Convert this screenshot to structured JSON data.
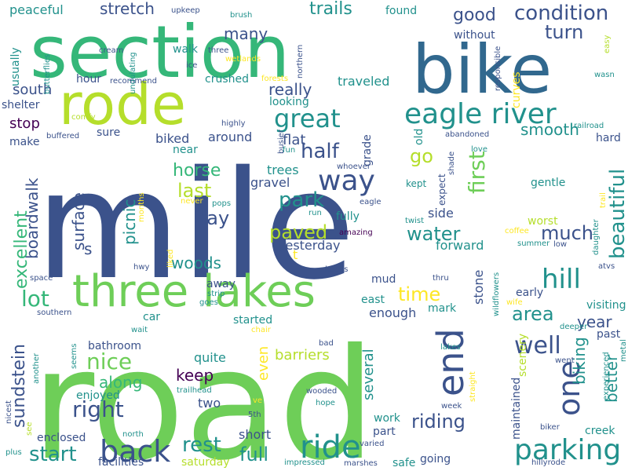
{
  "palette": {
    "background": "#ffffff",
    "dark_purple": "#440154",
    "indigo": "#3b528b",
    "blue": "#31688e",
    "teal": "#21918c",
    "green": "#35b779",
    "light_green": "#6ece58",
    "lime": "#b5de2b",
    "yellow": "#fde725"
  },
  "words": [
    {
      "text": "road",
      "weight": 1.0,
      "color": "light_green"
    },
    {
      "text": "mile",
      "weight": 0.98,
      "color": "indigo"
    },
    {
      "text": "section",
      "weight": 0.62,
      "color": "green"
    },
    {
      "text": "bike",
      "weight": 0.58,
      "color": "blue"
    },
    {
      "text": "rode",
      "weight": 0.5,
      "color": "lime"
    },
    {
      "text": "three lakes",
      "weight": 0.4,
      "color": "light_green"
    },
    {
      "text": "eagle river",
      "weight": 0.34,
      "color": "teal"
    },
    {
      "text": "back",
      "weight": 0.28,
      "color": "indigo"
    },
    {
      "text": "end",
      "weight": 0.28,
      "color": "indigo"
    },
    {
      "text": "parking",
      "weight": 0.26,
      "color": "teal"
    },
    {
      "text": "ride",
      "weight": 0.26,
      "color": "teal"
    },
    {
      "text": "one",
      "weight": 0.26,
      "color": "indigo"
    },
    {
      "text": "great",
      "weight": 0.24,
      "color": "teal"
    },
    {
      "text": "way",
      "weight": 0.24,
      "color": "indigo"
    },
    {
      "text": "hill",
      "weight": 0.22,
      "color": "teal"
    },
    {
      "text": "good",
      "weight": 0.17,
      "color": "indigo"
    },
    {
      "text": "condition",
      "weight": 0.17,
      "color": "indigo"
    },
    {
      "text": "turn",
      "weight": 0.17,
      "color": "indigo"
    },
    {
      "text": "first",
      "weight": 0.17,
      "color": "light_green"
    },
    {
      "text": "beautiful",
      "weight": 0.17,
      "color": "teal"
    },
    {
      "text": "half",
      "weight": 0.17,
      "color": "indigo"
    },
    {
      "text": "park",
      "weight": 0.17,
      "color": "teal"
    },
    {
      "text": "paved",
      "weight": 0.17,
      "color": "lime"
    },
    {
      "text": "water",
      "weight": 0.16,
      "color": "teal"
    },
    {
      "text": "much",
      "weight": 0.16,
      "color": "indigo"
    },
    {
      "text": "time",
      "weight": 0.16,
      "color": "yellow"
    },
    {
      "text": "lot",
      "weight": 0.17,
      "color": "green"
    },
    {
      "text": "well",
      "weight": 0.18,
      "color": "indigo"
    },
    {
      "text": "nice",
      "weight": 0.17,
      "color": "light_green"
    },
    {
      "text": "right",
      "weight": 0.16,
      "color": "indigo"
    },
    {
      "text": "start",
      "weight": 0.16,
      "color": "teal"
    },
    {
      "text": "rest",
      "weight": 0.16,
      "color": "teal"
    },
    {
      "text": "full",
      "weight": 0.14,
      "color": "teal"
    },
    {
      "text": "riding",
      "weight": 0.15,
      "color": "indigo"
    },
    {
      "text": "area",
      "weight": 0.14,
      "color": "teal"
    },
    {
      "text": "excellent",
      "weight": 0.14,
      "color": "green"
    },
    {
      "text": "sundstein",
      "weight": 0.14,
      "color": "indigo"
    },
    {
      "text": "boardwalk",
      "weight": 0.13,
      "color": "indigo"
    },
    {
      "text": "surface",
      "weight": 0.13,
      "color": "indigo"
    },
    {
      "text": "picnic",
      "weight": 0.12,
      "color": "teal"
    },
    {
      "text": "horse",
      "weight": 0.13,
      "color": "green"
    },
    {
      "text": "last",
      "weight": 0.13,
      "color": "lime"
    },
    {
      "text": "day",
      "weight": 0.13,
      "color": "indigo"
    },
    {
      "text": "woods",
      "weight": 0.12,
      "color": "teal"
    },
    {
      "text": "keep",
      "weight": 0.12,
      "color": "dark_purple"
    },
    {
      "text": "along",
      "weight": 0.12,
      "color": "green"
    },
    {
      "text": "year",
      "weight": 0.11,
      "color": "indigo"
    },
    {
      "text": "biking",
      "weight": 0.11,
      "color": "teal"
    },
    {
      "text": "better",
      "weight": 0.11,
      "color": "teal"
    },
    {
      "text": "trails",
      "weight": 0.11,
      "color": "teal"
    },
    {
      "text": "stretch",
      "weight": 0.1,
      "color": "indigo"
    },
    {
      "text": "many",
      "weight": 0.1,
      "color": "indigo"
    },
    {
      "text": "really",
      "weight": 0.1,
      "color": "indigo"
    },
    {
      "text": "smooth",
      "weight": 0.1,
      "color": "teal"
    },
    {
      "text": "go",
      "weight": 0.12,
      "color": "lime"
    },
    {
      "text": "stop",
      "weight": 0.1,
      "color": "dark_purple"
    },
    {
      "text": "south",
      "weight": 0.1,
      "color": "indigo"
    },
    {
      "text": "several",
      "weight": 0.1,
      "color": "teal"
    },
    {
      "text": "even",
      "weight": 0.09,
      "color": "yellow"
    },
    {
      "text": "barriers",
      "weight": 0.09,
      "color": "lime"
    },
    {
      "text": "peaceful",
      "weight": 0.09,
      "color": "teal"
    },
    {
      "text": "found",
      "weight": 0.08,
      "color": "teal"
    },
    {
      "text": "traveled",
      "weight": 0.09,
      "color": "teal"
    },
    {
      "text": "flat",
      "weight": 0.09,
      "color": "indigo"
    },
    {
      "text": "around",
      "weight": 0.09,
      "color": "indigo"
    },
    {
      "text": "biked",
      "weight": 0.09,
      "color": "indigo"
    },
    {
      "text": "trees",
      "weight": 0.08,
      "color": "teal"
    },
    {
      "text": "gravel",
      "weight": 0.08,
      "color": "indigo"
    },
    {
      "text": "yesterday",
      "weight": 0.08,
      "color": "indigo"
    },
    {
      "text": "forward",
      "weight": 0.08,
      "color": "teal"
    },
    {
      "text": "side",
      "weight": 0.08,
      "color": "indigo"
    },
    {
      "text": "enough",
      "weight": 0.08,
      "color": "indigo"
    },
    {
      "text": "stone",
      "weight": 0.08,
      "color": "indigo"
    },
    {
      "text": "quite",
      "weight": 0.08,
      "color": "teal"
    },
    {
      "text": "two",
      "weight": 0.08,
      "color": "indigo"
    },
    {
      "text": "short",
      "weight": 0.08,
      "color": "indigo"
    },
    {
      "text": "part",
      "weight": 0.07,
      "color": "indigo"
    },
    {
      "text": "work",
      "weight": 0.07,
      "color": "teal"
    },
    {
      "text": "safe",
      "weight": 0.07,
      "color": "teal"
    },
    {
      "text": "enjoyed",
      "weight": 0.07,
      "color": "teal"
    },
    {
      "text": "enclosed",
      "weight": 0.07,
      "color": "indigo"
    },
    {
      "text": "facilities",
      "weight": 0.07,
      "color": "indigo"
    },
    {
      "text": "bathroom",
      "weight": 0.07,
      "color": "indigo"
    },
    {
      "text": "car",
      "weight": 0.07,
      "color": "teal"
    },
    {
      "text": "away",
      "weight": 0.07,
      "color": "indigo"
    },
    {
      "text": "started",
      "weight": 0.06,
      "color": "teal"
    },
    {
      "text": "mud",
      "weight": 0.06,
      "color": "indigo"
    },
    {
      "text": "east",
      "weight": 0.06,
      "color": "teal"
    },
    {
      "text": "early",
      "weight": 0.06,
      "color": "indigo"
    },
    {
      "text": "visiting",
      "weight": 0.06,
      "color": "teal"
    },
    {
      "text": "past",
      "weight": 0.06,
      "color": "indigo"
    },
    {
      "text": "scenery",
      "weight": 0.06,
      "color": "lime"
    },
    {
      "text": "maintained",
      "weight": 0.06,
      "color": "indigo"
    },
    {
      "text": "creek",
      "weight": 0.06,
      "color": "teal"
    },
    {
      "text": "worst",
      "weight": 0.06,
      "color": "lime"
    },
    {
      "text": "gentle",
      "weight": 0.06,
      "color": "teal"
    },
    {
      "text": "hard",
      "weight": 0.06,
      "color": "indigo"
    },
    {
      "text": "curves",
      "weight": 0.06,
      "color": "yellow"
    },
    {
      "text": "kept",
      "weight": 0.05,
      "color": "teal"
    },
    {
      "text": "grade",
      "weight": 0.06,
      "color": "indigo"
    },
    {
      "text": "old",
      "weight": 0.06,
      "color": "teal"
    },
    {
      "text": "fully",
      "weight": 0.05,
      "color": "teal"
    },
    {
      "text": "mark",
      "weight": 0.05,
      "color": "teal"
    },
    {
      "text": "saturday",
      "weight": 0.05,
      "color": "lime"
    },
    {
      "text": "shelter",
      "weight": 0.05,
      "color": "indigo"
    },
    {
      "text": "usually",
      "weight": 0.05,
      "color": "teal"
    },
    {
      "text": "make",
      "weight": 0.05,
      "color": "indigo"
    },
    {
      "text": "looking",
      "weight": 0.05,
      "color": "teal"
    },
    {
      "text": "crushed",
      "weight": 0.05,
      "color": "teal"
    },
    {
      "text": "hour",
      "weight": 0.05,
      "color": "indigo"
    },
    {
      "text": "sure",
      "weight": 0.05,
      "color": "indigo"
    },
    {
      "text": "near",
      "weight": 0.05,
      "color": "teal"
    },
    {
      "text": "walk",
      "weight": 0.05,
      "color": "teal"
    },
    {
      "text": "without",
      "weight": 0.05,
      "color": "indigo"
    },
    {
      "text": "expect",
      "weight": 0.05,
      "color": "indigo"
    },
    {
      "text": "amazing",
      "weight": 0.04,
      "color": "dark_purple"
    },
    {
      "text": "whoever",
      "weight": 0.04,
      "color": "indigo"
    },
    {
      "text": "twist",
      "weight": 0.04,
      "color": "teal"
    },
    {
      "text": "brush",
      "weight": 0.04,
      "color": "teal"
    },
    {
      "text": "upkeep",
      "weight": 0.04,
      "color": "indigo"
    },
    {
      "text": "cream",
      "weight": 0.04,
      "color": "indigo"
    },
    {
      "text": "ice",
      "weight": 0.04,
      "color": "indigo"
    },
    {
      "text": "three",
      "weight": 0.04,
      "color": "indigo"
    },
    {
      "text": "wetlands",
      "weight": 0.04,
      "color": "yellow"
    },
    {
      "text": "forests",
      "weight": 0.04,
      "color": "yellow"
    },
    {
      "text": "northern",
      "weight": 0.04,
      "color": "indigo"
    },
    {
      "text": "butterflies",
      "weight": 0.04,
      "color": "teal"
    },
    {
      "text": "undulating",
      "weight": 0.04,
      "color": "teal"
    },
    {
      "text": "recommend",
      "weight": 0.04,
      "color": "indigo"
    },
    {
      "text": "highly",
      "weight": 0.04,
      "color": "indigo"
    },
    {
      "text": "comfy",
      "weight": 0.04,
      "color": "lime"
    },
    {
      "text": "buffered",
      "weight": 0.04,
      "color": "indigo"
    },
    {
      "text": "busier",
      "weight": 0.04,
      "color": "indigo"
    },
    {
      "text": "fun",
      "weight": 0.04,
      "color": "teal"
    },
    {
      "text": "abandoned",
      "weight": 0.04,
      "color": "indigo"
    },
    {
      "text": "love",
      "weight": 0.04,
      "color": "teal"
    },
    {
      "text": "railroad",
      "weight": 0.04,
      "color": "teal"
    },
    {
      "text": "shade",
      "weight": 0.04,
      "color": "indigo"
    },
    {
      "text": "responsible",
      "weight": 0.04,
      "color": "indigo"
    },
    {
      "text": "easy",
      "weight": 0.04,
      "color": "lime"
    },
    {
      "text": "wasn",
      "weight": 0.04,
      "color": "teal"
    },
    {
      "text": "daughter",
      "weight": 0.04,
      "color": "teal"
    },
    {
      "text": "trail",
      "weight": 0.04,
      "color": "yellow"
    },
    {
      "text": "coffee",
      "weight": 0.04,
      "color": "yellow"
    },
    {
      "text": "summer",
      "weight": 0.04,
      "color": "teal"
    },
    {
      "text": "low",
      "weight": 0.04,
      "color": "indigo"
    },
    {
      "text": "eagle",
      "weight": 0.04,
      "color": "indigo"
    },
    {
      "text": "never",
      "weight": 0.04,
      "color": "yellow"
    },
    {
      "text": "pops",
      "weight": 0.04,
      "color": "teal"
    },
    {
      "text": "run",
      "weight": 0.04,
      "color": "teal"
    },
    {
      "text": "months",
      "weight": 0.04,
      "color": "yellow"
    },
    {
      "text": "hwy",
      "weight": 0.04,
      "color": "indigo"
    },
    {
      "text": "liked",
      "weight": 0.04,
      "color": "yellow"
    },
    {
      "text": "kudos",
      "weight": 0.04,
      "color": "indigo"
    },
    {
      "text": "thru",
      "weight": 0.04,
      "color": "indigo"
    },
    {
      "text": "atvs",
      "weight": 0.04,
      "color": "indigo"
    },
    {
      "text": "wildflowers",
      "weight": 0.04,
      "color": "teal"
    },
    {
      "text": "space",
      "weight": 0.04,
      "color": "indigo"
    },
    {
      "text": "strip",
      "weight": 0.04,
      "color": "teal"
    },
    {
      "text": "goes",
      "weight": 0.04,
      "color": "teal"
    },
    {
      "text": "wife",
      "weight": 0.04,
      "color": "yellow"
    },
    {
      "text": "deeper",
      "weight": 0.04,
      "color": "teal"
    },
    {
      "text": "southern",
      "weight": 0.04,
      "color": "indigo"
    },
    {
      "text": "wait",
      "weight": 0.04,
      "color": "teal"
    },
    {
      "text": "chair",
      "weight": 0.04,
      "color": "yellow"
    },
    {
      "text": "another",
      "weight": 0.04,
      "color": "teal"
    },
    {
      "text": "bad",
      "weight": 0.04,
      "color": "indigo"
    },
    {
      "text": "lakes",
      "weight": 0.04,
      "color": "teal"
    },
    {
      "text": "went",
      "weight": 0.04,
      "color": "indigo"
    },
    {
      "text": "straight",
      "weight": 0.04,
      "color": "yellow"
    },
    {
      "text": "experienced",
      "weight": 0.04,
      "color": "teal"
    },
    {
      "text": "metal",
      "weight": 0.04,
      "color": "teal"
    },
    {
      "text": "seems",
      "weight": 0.04,
      "color": "teal"
    },
    {
      "text": "trailhead",
      "weight": 0.04,
      "color": "teal"
    },
    {
      "text": "wooded",
      "weight": 0.04,
      "color": "indigo"
    },
    {
      "text": "hope",
      "weight": 0.04,
      "color": "teal"
    },
    {
      "text": "ve",
      "weight": 0.04,
      "color": "yellow"
    },
    {
      "text": "5th",
      "weight": 0.04,
      "color": "indigo"
    },
    {
      "text": "nicest",
      "weight": 0.04,
      "color": "indigo"
    },
    {
      "text": "see",
      "weight": 0.04,
      "color": "lime"
    },
    {
      "text": "north",
      "weight": 0.04,
      "color": "teal"
    },
    {
      "text": "week",
      "weight": 0.04,
      "color": "indigo"
    },
    {
      "text": "biker",
      "weight": 0.04,
      "color": "indigo"
    },
    {
      "text": "plus",
      "weight": 0.04,
      "color": "teal"
    },
    {
      "text": "varied",
      "weight": 0.04,
      "color": "indigo"
    },
    {
      "text": "impressed",
      "weight": 0.04,
      "color": "teal"
    },
    {
      "text": "marshes",
      "weight": 0.04,
      "color": "indigo"
    },
    {
      "text": "hillyrode",
      "weight": 0.04,
      "color": "indigo"
    },
    {
      "text": "going",
      "weight": 0.06,
      "color": "indigo"
    },
    {
      "text": "s",
      "weight": 0.06,
      "color": "indigo"
    },
    {
      "text": "t",
      "weight": 0.05,
      "color": "yellow"
    }
  ]
}
